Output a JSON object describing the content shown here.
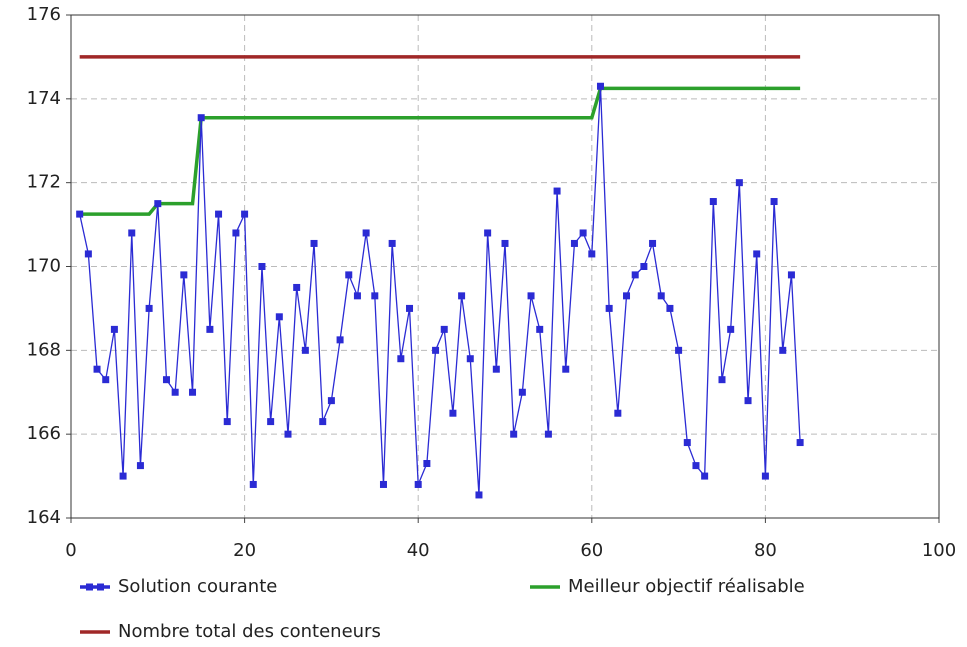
{
  "chart_data": {
    "type": "line",
    "xlim": [
      0,
      100
    ],
    "xticks": [
      0,
      20,
      40,
      60,
      80,
      100
    ],
    "ylim": [
      164,
      176
    ],
    "yticks": [
      164,
      166,
      168,
      170,
      172,
      174,
      176
    ],
    "grid": true,
    "series": [
      {
        "name": "Solution courante",
        "color": "#2b2bd4",
        "marker": true,
        "x": [
          1,
          2,
          3,
          4,
          5,
          6,
          7,
          8,
          9,
          10,
          11,
          12,
          13,
          14,
          15,
          16,
          17,
          18,
          19,
          20,
          21,
          22,
          23,
          24,
          25,
          26,
          27,
          28,
          29,
          30,
          31,
          32,
          33,
          34,
          35,
          36,
          37,
          38,
          39,
          40,
          41,
          42,
          43,
          44,
          45,
          46,
          47,
          48,
          49,
          50,
          51,
          52,
          53,
          54,
          55,
          56,
          57,
          58,
          59,
          60,
          61,
          62,
          63,
          64,
          65,
          66,
          67,
          68,
          69,
          70,
          71,
          72,
          73,
          74,
          75,
          76,
          77,
          78,
          79,
          80,
          81,
          82,
          83,
          84
        ],
        "values": [
          171.25,
          170.3,
          167.55,
          167.3,
          168.5,
          165,
          170.8,
          165.25,
          169,
          171.5,
          167.3,
          167,
          169.8,
          167,
          173.55,
          168.5,
          171.25,
          166.3,
          170.8,
          171.25,
          164.8,
          170,
          166.3,
          168.8,
          166,
          169.5,
          168,
          170.55,
          166.3,
          166.8,
          168.25,
          169.8,
          169.3,
          170.8,
          169.3,
          164.8,
          170.55,
          167.8,
          169,
          164.8,
          165.3,
          168,
          168.5,
          166.5,
          169.3,
          167.8,
          164.55,
          170.8,
          167.55,
          170.55,
          166,
          167,
          169.3,
          168.5,
          166,
          171.8,
          167.55,
          170.55,
          170.8,
          170.3,
          174.3,
          169,
          166.5,
          169.3,
          169.8,
          170,
          170.55,
          169.3,
          169,
          168,
          165.8,
          165.25,
          165,
          171.55,
          167.3,
          168.5,
          172,
          166.8,
          170.3,
          165,
          171.55,
          168,
          169.8,
          165.8
        ]
      },
      {
        "name": "Meilleur objectif réalisable",
        "color": "#2ca02c",
        "marker": false,
        "x": [
          1,
          9,
          10,
          14,
          15,
          60,
          61,
          84
        ],
        "values": [
          171.25,
          171.25,
          171.5,
          171.5,
          173.55,
          173.55,
          174.25,
          174.25
        ]
      },
      {
        "name": "Nombre total des conteneurs",
        "color": "#a02828",
        "marker": false,
        "x": [
          1,
          84
        ],
        "values": [
          175,
          175
        ]
      }
    ]
  }
}
